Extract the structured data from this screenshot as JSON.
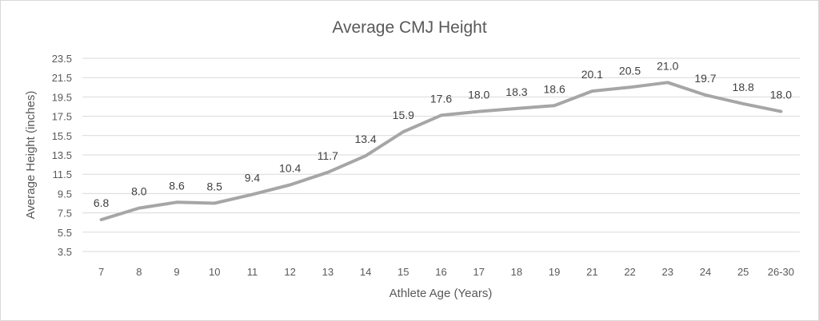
{
  "chart_data": {
    "type": "line",
    "title": "Average CMJ Height",
    "xlabel": "Athlete Age (Years)",
    "ylabel": "Average Height (inches)",
    "categories": [
      "7",
      "8",
      "9",
      "10",
      "11",
      "12",
      "13",
      "14",
      "15",
      "16",
      "17",
      "18",
      "19",
      "21",
      "22",
      "23",
      "24",
      "25",
      "26-30"
    ],
    "series": [
      {
        "values": [
          6.8,
          8.0,
          8.6,
          8.5,
          9.4,
          10.4,
          11.7,
          13.4,
          15.9,
          17.6,
          18.0,
          18.3,
          18.6,
          20.1,
          20.5,
          21.0,
          19.7,
          18.8,
          18.0
        ]
      }
    ],
    "data_labels": [
      "6.8",
      "8.0",
      "8.6",
      "8.5",
      "9.4",
      "10.4",
      "11.7",
      "13.4",
      "15.9",
      "17.6",
      "18.0",
      "18.3",
      "18.6",
      "20.1",
      "20.5",
      "21.0",
      "19.7",
      "18.8",
      "18.0"
    ],
    "yticks": [
      "3.5",
      "5.5",
      "7.5",
      "9.5",
      "11.5",
      "13.5",
      "15.5",
      "17.5",
      "19.5",
      "21.5",
      "23.5"
    ],
    "ylim": [
      3.5,
      23.5
    ],
    "grid": true,
    "legend": "none",
    "colors": {
      "line": "#a6a6a6",
      "grid": "#d9d9d9",
      "text": "#595959"
    }
  }
}
